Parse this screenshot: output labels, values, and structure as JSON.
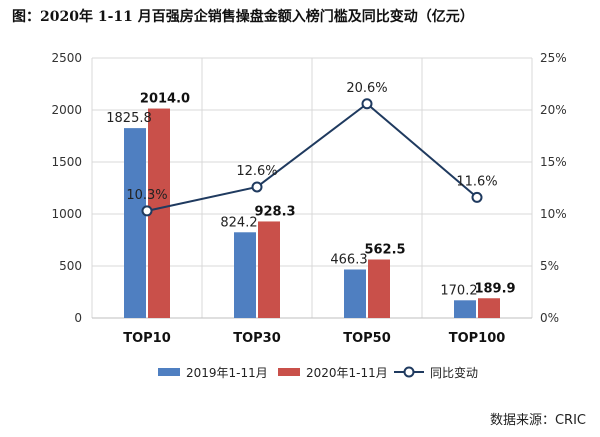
{
  "title": "图：2020年 1-11 月百强房企销售操盘金额入榜门槛及同比变动（亿元）",
  "source": "数据来源：CRIC",
  "colors": {
    "s2019": "#4f7fc1",
    "s2020": "#c9504a",
    "line": "#1f3a5f",
    "grid": "#d9d9d9"
  },
  "chart_data": {
    "type": "bar",
    "categories": [
      "TOP10",
      "TOP30",
      "TOP50",
      "TOP100"
    ],
    "series": [
      {
        "name": "2019年1-11月",
        "values": [
          1825.8,
          824.2,
          466.3,
          170.2
        ]
      },
      {
        "name": "2020年1-11月",
        "values": [
          2014.0,
          928.3,
          562.5,
          189.9
        ]
      }
    ],
    "line_series": {
      "name": "同比变动",
      "values": [
        10.3,
        12.6,
        20.6,
        11.6
      ],
      "axis": "right",
      "unit": "%"
    },
    "ylim": [
      0,
      2500
    ],
    "y2lim": [
      0,
      25
    ],
    "yticks": [
      "0",
      "500",
      "1000",
      "1500",
      "2000",
      "2500"
    ],
    "y2ticks": [
      "0%",
      "5%",
      "10%",
      "15%",
      "20%",
      "25%"
    ],
    "bar_labels_2019": [
      "1825.8",
      "824.2",
      "466.3",
      "170.2"
    ],
    "bar_labels_2020": [
      "2014.0",
      "928.3",
      "562.5",
      "189.9"
    ],
    "line_labels": [
      "10.3%",
      "12.6%",
      "20.6%",
      "11.6%"
    ],
    "grid": true,
    "legend": "bottom"
  }
}
